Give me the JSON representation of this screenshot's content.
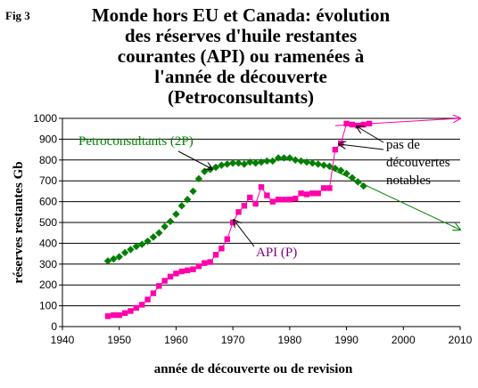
{
  "figure_label": "Fig 3",
  "chart_data": {
    "type": "scatter",
    "title_lines": [
      "Monde hors EU et Canada: évolution",
      "des réserves d'huile restantes",
      "courantes (API) ou ramenées à",
      "l'année de découverte",
      "(Petroconsultants)"
    ],
    "xlabel": "année de découverte ou de revision",
    "ylabel": "réserves restantes Gb",
    "xlim": [
      1940,
      2010
    ],
    "ylim": [
      0,
      1000
    ],
    "xticks": [
      1940,
      1950,
      1960,
      1970,
      1980,
      1990,
      2000,
      2010
    ],
    "yticks": [
      0,
      100,
      200,
      300,
      400,
      500,
      600,
      700,
      800,
      900,
      1000
    ],
    "grid": "horizontal",
    "series": [
      {
        "name": "Petroconsultants (2P)",
        "color": "#008000",
        "marker": "diamond",
        "x": [
          1948,
          1949,
          1950,
          1951,
          1952,
          1953,
          1954,
          1955,
          1956,
          1957,
          1958,
          1959,
          1960,
          1961,
          1962,
          1963,
          1964,
          1965,
          1966,
          1967,
          1968,
          1969,
          1970,
          1971,
          1972,
          1973,
          1974,
          1975,
          1976,
          1977,
          1978,
          1979,
          1980,
          1981,
          1982,
          1983,
          1984,
          1985,
          1986,
          1987,
          1988,
          1989,
          1990,
          1991,
          1992,
          1993
        ],
        "y": [
          315,
          325,
          335,
          355,
          370,
          385,
          395,
          410,
          430,
          450,
          480,
          505,
          540,
          580,
          610,
          650,
          710,
          745,
          755,
          765,
          775,
          780,
          785,
          785,
          780,
          790,
          785,
          790,
          795,
          795,
          810,
          810,
          810,
          800,
          795,
          790,
          785,
          780,
          775,
          770,
          760,
          750,
          735,
          715,
          695,
          675
        ]
      },
      {
        "name": "API (P)",
        "color": "#ff00aa",
        "marker": "square",
        "x": [
          1948,
          1949,
          1950,
          1951,
          1952,
          1953,
          1954,
          1955,
          1956,
          1957,
          1958,
          1959,
          1960,
          1961,
          1962,
          1963,
          1964,
          1965,
          1966,
          1967,
          1968,
          1969,
          1970,
          1971,
          1972,
          1973,
          1974,
          1975,
          1976,
          1977,
          1978,
          1979,
          1980,
          1981,
          1982,
          1983,
          1984,
          1985,
          1986,
          1987,
          1988,
          1989,
          1990,
          1991,
          1992,
          1993,
          1994
        ],
        "y": [
          50,
          55,
          55,
          65,
          75,
          90,
          105,
          130,
          160,
          195,
          220,
          240,
          255,
          265,
          270,
          275,
          290,
          305,
          310,
          345,
          375,
          420,
          500,
          550,
          580,
          620,
          590,
          670,
          630,
          600,
          610,
          610,
          610,
          615,
          640,
          635,
          640,
          640,
          665,
          665,
          850,
          880,
          975,
          970,
          965,
          970,
          975
        ]
      }
    ],
    "trend_lines": [
      {
        "series": "Petroconsultants (2P)",
        "color": "#008000",
        "from": [
          1987,
          760
        ],
        "to": [
          2010,
          465
        ]
      },
      {
        "series": "API (P)",
        "color": "#ff00aa",
        "from": [
          1988,
          965
        ],
        "to": [
          2010,
          1000
        ]
      }
    ],
    "annotations": [
      {
        "text": "Petroconsultants (2P)",
        "color": "#008000"
      },
      {
        "text": "API (P)",
        "color": "#800080"
      },
      {
        "text_lines": [
          "pas de",
          "découvertes",
          "notables"
        ],
        "color": "#000000"
      }
    ]
  }
}
